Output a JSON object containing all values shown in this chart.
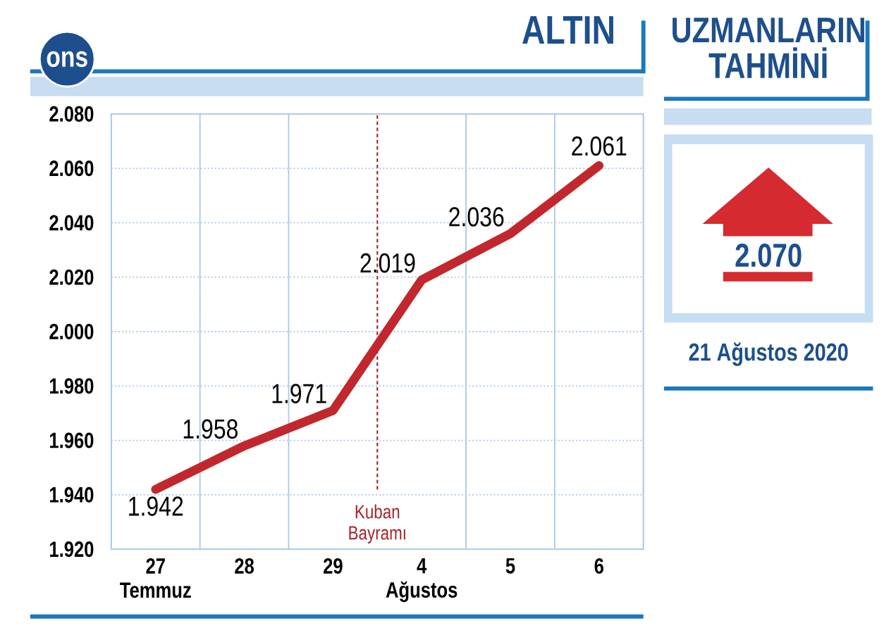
{
  "chart_data": [
    {
      "type": "line",
      "title": "ALTIN",
      "ylabel": "ons",
      "categories": [
        "27 Temmuz",
        "28",
        "29",
        "4 Ağustos",
        "5",
        "6"
      ],
      "series": [
        {
          "color": "#c1272d",
          "values": [
            1942,
            1958,
            1971,
            2019,
            2036,
            2061
          ],
          "value_labels": [
            "1.942",
            "1.958",
            "1.971",
            "2.019",
            "2.036",
            "2.061"
          ]
        }
      ],
      "ylim": [
        1920,
        2080
      ],
      "yticks": [
        {
          "value": 1920,
          "label": "1.920"
        },
        {
          "value": 1940,
          "label": "1.940"
        },
        {
          "value": 1960,
          "label": "1.960"
        },
        {
          "value": 1980,
          "label": "1.980"
        },
        {
          "value": 2000,
          "label": "2.000"
        },
        {
          "value": 2020,
          "label": "2.020"
        },
        {
          "value": 2040,
          "label": "2.040"
        },
        {
          "value": 2060,
          "label": "2.060"
        },
        {
          "value": 2080,
          "label": "2.080"
        }
      ],
      "grid": true,
      "annotations": [
        "Kuban Bayramı"
      ]
    },
    {
      "type": "other",
      "title": "UZMANLARIN TAHMİNİ",
      "annotations": [
        "2.070",
        "21 Ağustos 2020"
      ]
    }
  ]
}
